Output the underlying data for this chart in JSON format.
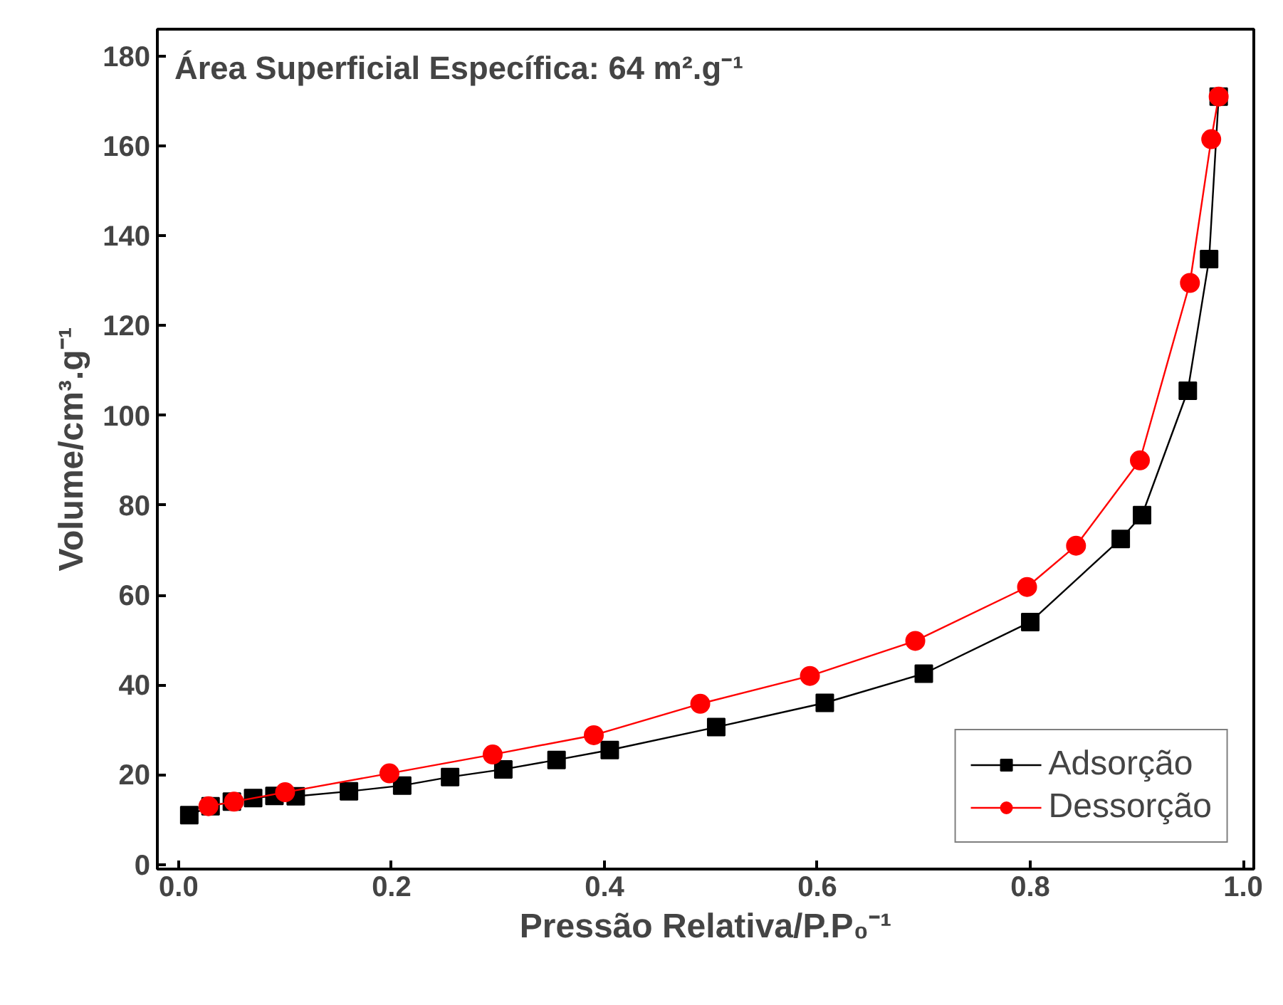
{
  "chart_data": {
    "type": "line",
    "xlabel": "Pressão Relativa/P.P₀⁻¹",
    "ylabel": "Volume/cm³.g⁻¹",
    "annotations": [
      "Área Superficial Específica: 64 m².g⁻¹"
    ],
    "xlim": [
      -0.02,
      1.01
    ],
    "ylim": [
      -1,
      186
    ],
    "xticks": [
      {
        "value": 0,
        "label": "0.0"
      },
      {
        "value": 0.2,
        "label": "0.2"
      },
      {
        "value": 0.4,
        "label": "0.4"
      },
      {
        "value": 0.6,
        "label": "0.6"
      },
      {
        "value": 0.8,
        "label": "0.8"
      },
      {
        "value": 1,
        "label": "1.0"
      }
    ],
    "yticks": [
      0,
      20,
      40,
      60,
      80,
      100,
      120,
      140,
      160,
      180
    ],
    "grid": false,
    "legend": "bottom right",
    "line_style": "solid",
    "series": [
      {
        "name": "Adsorção",
        "color": "#000000",
        "marker": "square",
        "x": [
          0.01,
          0.03,
          0.05,
          0.07,
          0.09,
          0.11,
          0.16,
          0.21,
          0.255,
          0.305,
          0.355,
          0.405,
          0.505,
          0.607,
          0.7,
          0.8,
          0.885,
          0.905,
          0.948,
          0.968,
          0.977
        ],
        "values": [
          11,
          13,
          14,
          14.8,
          15.3,
          15.2,
          16.3,
          17.6,
          19.5,
          21.2,
          23.3,
          25.5,
          30.6,
          36,
          42.5,
          54,
          72.5,
          77.8,
          105.5,
          134.8,
          171
        ]
      },
      {
        "name": "Dessorção",
        "color": "#ff0000",
        "marker": "circle",
        "x": [
          0.028,
          0.052,
          0.1,
          0.198,
          0.295,
          0.39,
          0.49,
          0.593,
          0.692,
          0.797,
          0.843,
          0.903,
          0.95,
          0.97,
          0.977
        ],
        "values": [
          13,
          14,
          16.1,
          20.3,
          24.5,
          28.8,
          35.8,
          42,
          49.8,
          61.8,
          71,
          90,
          129.5,
          161.5,
          171
        ]
      }
    ]
  }
}
